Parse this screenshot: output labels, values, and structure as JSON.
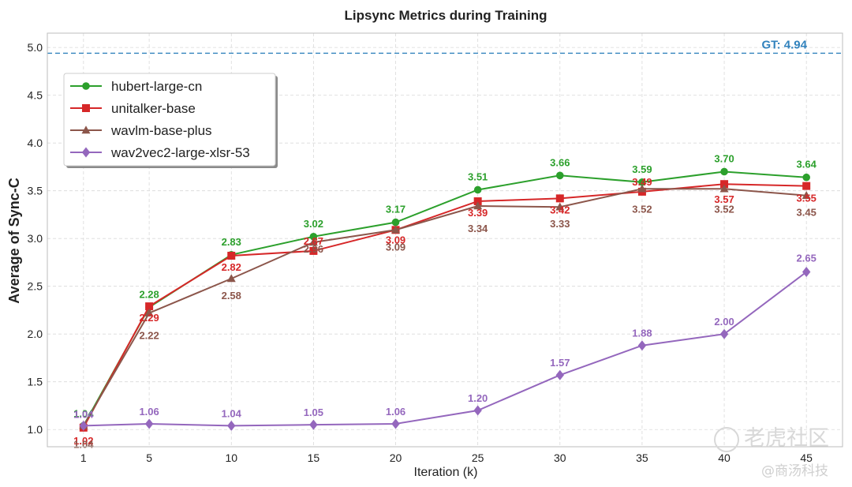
{
  "chart_data": {
    "type": "line",
    "title": "Lipsync Metrics during Training",
    "xlabel": "Iteration (k)",
    "ylabel": "Average of Sync-C",
    "x": [
      1,
      5,
      10,
      15,
      20,
      25,
      30,
      35,
      40,
      45
    ],
    "xlim": [
      -1.2,
      47.2
    ],
    "ylim": [
      0.82,
      5.15
    ],
    "yticks": [
      1.0,
      1.5,
      2.0,
      2.5,
      3.0,
      3.5,
      4.0,
      4.5,
      5.0
    ],
    "ytick_labels": [
      "1.0",
      "1.5",
      "2.0",
      "2.5",
      "3.0",
      "3.5",
      "4.0",
      "4.5",
      "5.0"
    ],
    "xtick_labels": [
      "1",
      "5",
      "10",
      "15",
      "20",
      "25",
      "30",
      "35",
      "40",
      "45"
    ],
    "grid": true,
    "legend_position": "upper-left",
    "reference_line": {
      "value": 4.94,
      "label": "GT: 4.94",
      "color": "#3182bd"
    },
    "series": [
      {
        "name": "hubert-large-cn",
        "color": "#2ca02c",
        "marker": "circle",
        "values": [
          1.04,
          2.28,
          2.83,
          3.02,
          3.17,
          3.51,
          3.66,
          3.59,
          3.7,
          3.64
        ],
        "labels": [
          "1.04",
          "2.28",
          "2.83",
          "3.02",
          "3.17",
          "3.51",
          "3.66",
          "3.59",
          "3.70",
          "3.64"
        ]
      },
      {
        "name": "unitalker-base",
        "color": "#d62728",
        "marker": "square",
        "values": [
          1.02,
          2.29,
          2.82,
          2.87,
          3.09,
          3.39,
          3.42,
          3.49,
          3.57,
          3.55
        ],
        "labels": [
          "1.02",
          "2.29",
          "2.82",
          "2.87",
          "3.09",
          "3.39",
          "3.42",
          "3.49",
          "3.57",
          "3.55"
        ]
      },
      {
        "name": "wavlm-base-plus",
        "color": "#8c564b",
        "marker": "triangle",
        "values": [
          1.04,
          2.22,
          2.58,
          2.96,
          3.09,
          3.34,
          3.33,
          3.52,
          3.52,
          3.45
        ],
        "labels": [
          "1.04",
          "2.22",
          "2.58",
          "2.96",
          "3.09",
          "3.34",
          "3.33",
          "3.52",
          "3.52",
          "3.45"
        ]
      },
      {
        "name": "wav2vec2-large-xlsr-53",
        "color": "#9467bd",
        "marker": "diamond",
        "values": [
          1.04,
          1.06,
          1.04,
          1.05,
          1.06,
          1.2,
          1.57,
          1.88,
          2.0,
          2.65
        ],
        "labels": [
          "1.04",
          "1.06",
          "1.04",
          "1.05",
          "1.06",
          "1.20",
          "1.57",
          "1.88",
          "2.00",
          "2.65"
        ]
      }
    ]
  },
  "watermark": {
    "line1": "老虎社区",
    "line2": "@商汤科技"
  }
}
